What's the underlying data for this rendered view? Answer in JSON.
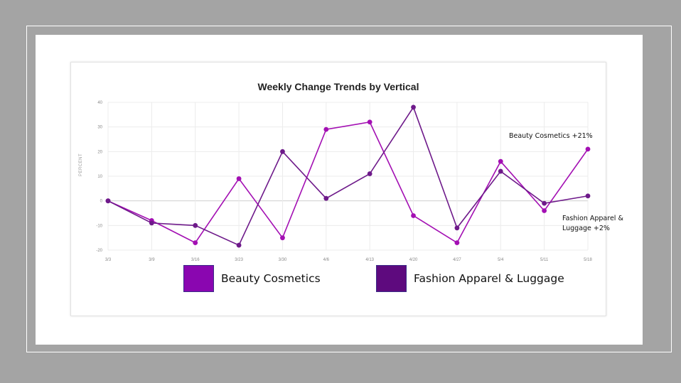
{
  "chart_data": {
    "type": "line",
    "title": "Weekly Change Trends by Vertical",
    "xlabel": "",
    "ylabel": "PERCENT",
    "categories": [
      "3/3",
      "3/9",
      "3/16",
      "3/23",
      "3/30",
      "4/6",
      "4/13",
      "4/20",
      "4/27",
      "5/4",
      "5/11",
      "5/18"
    ],
    "yticks": [
      "40",
      "30",
      "20",
      "10",
      "0",
      "-10",
      "-20"
    ],
    "ylim": [
      -20,
      40
    ],
    "grid": true,
    "legend_position": "bottom",
    "series": [
      {
        "name": "Beauty Cosmetics",
        "color": "#a30fb3",
        "values": [
          0,
          -8,
          -17,
          9,
          -15,
          29,
          32,
          -6,
          -17,
          16,
          -4,
          21
        ]
      },
      {
        "name": "Fashion Apparel & Luggage",
        "color": "#6e1a8a",
        "values": [
          0,
          -9,
          -10,
          -18,
          20,
          1,
          11,
          38,
          -11,
          12,
          -1,
          2
        ]
      }
    ],
    "annotations": [
      {
        "text": "Beauty Cosmetics +21%"
      },
      {
        "line1": "Fashion Apparel &",
        "line2": "Luggage +2%"
      }
    ]
  },
  "legend": [
    {
      "label": "Beauty Cosmetics",
      "color": "#8a06b0"
    },
    {
      "label": "Fashion Apparel & Luggage",
      "color": "#5e0a7e"
    }
  ]
}
